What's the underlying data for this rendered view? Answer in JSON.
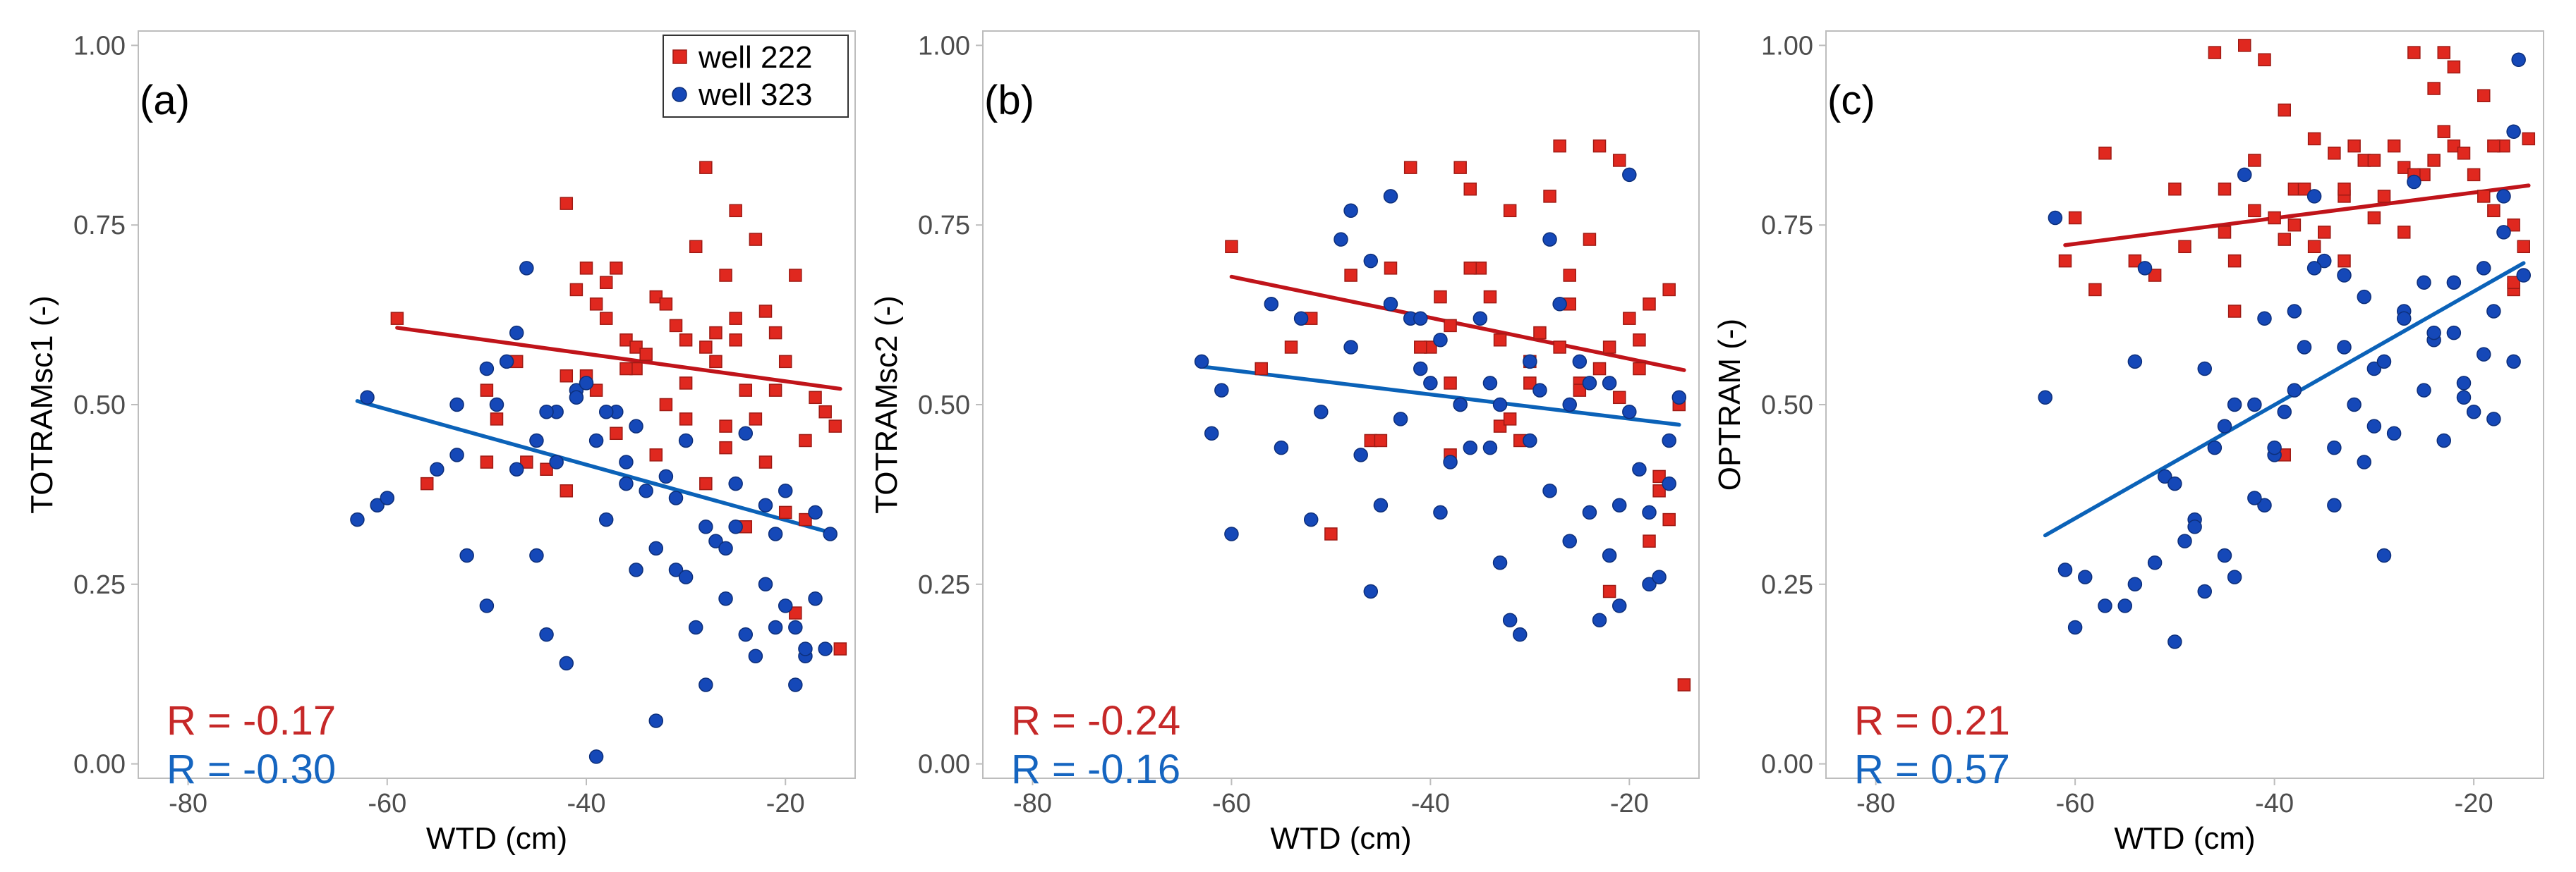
{
  "colors": {
    "well_222": "#e0281f",
    "well_222_edge": "#9e1a14",
    "well_222_line": "#c0141a",
    "well_323": "#1548b8",
    "well_323_edge": "#0d2f7a",
    "well_323_line": "#0b62b8",
    "r_222": "#c62828",
    "r_323": "#1565c0",
    "axis": "#bdbdbd",
    "tick_text": "#4d4d4d"
  },
  "legend": {
    "well_222": "well 222",
    "well_323": "well 323"
  },
  "chart_data": [
    {
      "type": "scatter",
      "panel": "(a)",
      "xlabel": "WTD (cm)",
      "ylabel": "TOTRAMsc1 (-)",
      "xlim": [
        -85,
        -13
      ],
      "ylim": [
        -0.02,
        1.02
      ],
      "xticks": [
        -80,
        -60,
        -40,
        -20
      ],
      "xtick_labels": [
        "-80",
        "-60",
        "-40",
        "-20"
      ],
      "yticks": [
        0,
        0.25,
        0.5,
        0.75,
        1
      ],
      "ytick_labels": [
        "0.00",
        "0.25",
        "0.50",
        "0.75",
        "1.00"
      ],
      "r_222": "R = -0.17",
      "r_323": "R = -0.30",
      "fit_222": {
        "x": [
          -59,
          -14.5
        ],
        "y": [
          0.607,
          0.522
        ]
      },
      "fit_323": {
        "x": [
          -63,
          -15.5
        ],
        "y": [
          0.505,
          0.322
        ]
      },
      "series": [
        {
          "name": "well 222",
          "marker": "square",
          "x": [
            -59,
            -56,
            -50,
            -49,
            -47,
            -44,
            -42,
            -41,
            -40,
            -39,
            -38,
            -37,
            -36,
            -35,
            -35,
            -33,
            -32,
            -31,
            -30,
            -30,
            -29,
            -28,
            -28,
            -27,
            -26,
            -26,
            -25,
            -25,
            -24,
            -23,
            -22,
            -21,
            -21,
            -20,
            -19,
            -18,
            -17,
            -16,
            -15,
            -14.5,
            -40,
            -38,
            -36,
            -34,
            -32,
            -30,
            -28,
            -26,
            -24,
            -22,
            -20,
            -19,
            -42,
            -39,
            -37,
            -33,
            -27,
            -25,
            -23,
            -18,
            -50,
            -46,
            -42
          ],
          "y": [
            0.62,
            0.39,
            0.52,
            0.48,
            0.56,
            0.41,
            0.78,
            0.66,
            0.69,
            0.64,
            0.67,
            0.69,
            0.59,
            0.55,
            0.58,
            0.65,
            0.64,
            0.61,
            0.59,
            0.53,
            0.72,
            0.58,
            0.83,
            0.6,
            0.68,
            0.47,
            0.59,
            0.77,
            0.52,
            0.73,
            0.63,
            0.6,
            0.52,
            0.56,
            0.68,
            0.45,
            0.51,
            0.49,
            0.47,
            0.16,
            0.54,
            0.62,
            0.55,
            0.57,
            0.5,
            0.48,
            0.39,
            0.44,
            0.33,
            0.42,
            0.35,
            0.21,
            0.38,
            0.52,
            0.46,
            0.43,
            0.56,
            0.62,
            0.48,
            0.34,
            0.42,
            0.42,
            0.54
          ]
        },
        {
          "name": "well 323",
          "marker": "circle",
          "x": [
            -63,
            -62,
            -61,
            -60,
            -55,
            -53,
            -52,
            -50,
            -49,
            -48,
            -47,
            -46,
            -45,
            -44,
            -43,
            -42,
            -41,
            -40,
            -39,
            -39,
            -38,
            -37,
            -36,
            -35,
            -34,
            -33,
            -33,
            -32,
            -31,
            -30,
            -29,
            -28,
            -27,
            -26,
            -25,
            -24,
            -23,
            -22,
            -21,
            -20,
            -19,
            -18,
            -17,
            -16,
            -15.5,
            -50,
            -47,
            -43,
            -41,
            -38,
            -35,
            -31,
            -28,
            -25,
            -22,
            -20,
            -17,
            -53,
            -45,
            -44,
            -36,
            -30,
            -26,
            -24,
            -21,
            -19,
            -18
          ],
          "y": [
            0.34,
            0.51,
            0.36,
            0.37,
            0.41,
            0.43,
            0.29,
            0.22,
            0.5,
            0.56,
            0.41,
            0.69,
            0.45,
            0.18,
            0.42,
            0.14,
            0.52,
            0.53,
            0.01,
            0.45,
            0.34,
            0.49,
            0.42,
            0.27,
            0.38,
            0.06,
            0.3,
            0.4,
            0.27,
            0.45,
            0.19,
            0.11,
            0.31,
            0.23,
            0.39,
            0.18,
            0.15,
            0.25,
            0.19,
            0.22,
            0.11,
            0.15,
            0.23,
            0.16,
            0.32,
            0.55,
            0.6,
            0.49,
            0.51,
            0.49,
            0.47,
            0.37,
            0.33,
            0.33,
            0.36,
            0.38,
            0.35,
            0.5,
            0.29,
            0.49,
            0.39,
            0.26,
            0.3,
            0.46,
            0.32,
            0.19,
            0.16
          ]
        }
      ]
    },
    {
      "type": "scatter",
      "panel": "(b)",
      "xlabel": "WTD (cm)",
      "ylabel": "TOTRAMsc2 (-)",
      "xlim": [
        -85,
        -13
      ],
      "ylim": [
        -0.02,
        1.02
      ],
      "xticks": [
        -80,
        -60,
        -40,
        -20
      ],
      "xtick_labels": [
        "-80",
        "-60",
        "-40",
        "-20"
      ],
      "yticks": [
        0,
        0.25,
        0.5,
        0.75,
        1
      ],
      "ytick_labels": [
        "0.00",
        "0.25",
        "0.50",
        "0.75",
        "1.00"
      ],
      "r_222": "R = -0.24",
      "r_323": "R = -0.16",
      "fit_222": {
        "x": [
          -60,
          -14.5
        ],
        "y": [
          0.678,
          0.548
        ]
      },
      "fit_323": {
        "x": [
          -63,
          -15
        ],
        "y": [
          0.553,
          0.472
        ]
      },
      "series": [
        {
          "name": "well 222",
          "marker": "square",
          "x": [
            -60,
            -57,
            -54,
            -52,
            -50,
            -48,
            -46,
            -44,
            -42,
            -40,
            -39,
            -38,
            -37,
            -36,
            -35,
            -34,
            -33,
            -32,
            -31,
            -30,
            -29,
            -28,
            -27,
            -26,
            -25,
            -24,
            -23,
            -22,
            -21,
            -20,
            -19,
            -18,
            -17,
            -16,
            -15,
            -14.5,
            -41,
            -38,
            -36,
            -33,
            -30,
            -27,
            -25,
            -23,
            -21,
            -19,
            -17,
            -16,
            -45,
            -38,
            -32,
            -26,
            -22,
            -18
          ],
          "y": [
            0.72,
            0.55,
            0.58,
            0.62,
            0.32,
            0.68,
            0.45,
            0.69,
            0.83,
            0.58,
            0.65,
            0.43,
            0.83,
            0.8,
            0.69,
            0.65,
            0.47,
            0.77,
            0.45,
            0.53,
            0.6,
            0.79,
            0.86,
            0.68,
            0.53,
            0.73,
            0.86,
            0.58,
            0.84,
            0.62,
            0.59,
            0.64,
            0.4,
            0.66,
            0.5,
            0.11,
            0.58,
            0.53,
            0.69,
            0.59,
            0.56,
            0.58,
            0.52,
            0.55,
            0.51,
            0.55,
            0.38,
            0.34,
            0.45,
            0.61,
            0.48,
            0.64,
            0.24,
            0.31
          ]
        },
        {
          "name": "well 323",
          "marker": "circle",
          "x": [
            -63,
            -62,
            -61,
            -60,
            -56,
            -55,
            -53,
            -51,
            -49,
            -48,
            -47,
            -46,
            -45,
            -44,
            -43,
            -42,
            -41,
            -40,
            -39,
            -38,
            -37,
            -36,
            -35,
            -34,
            -33,
            -32,
            -31,
            -30,
            -29,
            -28,
            -27,
            -26,
            -25,
            -24,
            -23,
            -22,
            -21,
            -20,
            -19,
            -18,
            -17,
            -16,
            -15,
            -48,
            -44,
            -41,
            -37,
            -34,
            -30,
            -26,
            -22,
            -20,
            -16,
            -52,
            -46,
            -39,
            -33,
            -28,
            -24,
            -21,
            -18
          ],
          "y": [
            0.56,
            0.46,
            0.52,
            0.32,
            0.64,
            0.44,
            0.62,
            0.49,
            0.73,
            0.77,
            0.43,
            0.24,
            0.36,
            0.79,
            0.48,
            0.62,
            0.55,
            0.53,
            0.35,
            0.42,
            0.5,
            0.44,
            0.62,
            0.53,
            0.5,
            0.2,
            0.18,
            0.45,
            0.52,
            0.38,
            0.64,
            0.31,
            0.56,
            0.35,
            0.2,
            0.29,
            0.36,
            0.82,
            0.41,
            0.25,
            0.26,
            0.45,
            0.51,
            0.58,
            0.64,
            0.62,
            0.5,
            0.44,
            0.56,
            0.5,
            0.53,
            0.49,
            0.39,
            0.34,
            0.7,
            0.59,
            0.28,
            0.73,
            0.53,
            0.22,
            0.35
          ]
        }
      ]
    },
    {
      "type": "scatter",
      "panel": "(c)",
      "xlabel": "WTD (cm)",
      "ylabel": "OPTRAM (-)",
      "xlim": [
        -85,
        -13
      ],
      "ylim": [
        -0.02,
        1.02
      ],
      "xticks": [
        -80,
        -60,
        -40,
        -20
      ],
      "xtick_labels": [
        "-80",
        "-60",
        "-40",
        "-20"
      ],
      "yticks": [
        0,
        0.25,
        0.5,
        0.75,
        1
      ],
      "ytick_labels": [
        "0.00",
        "0.25",
        "0.50",
        "0.75",
        "1.00"
      ],
      "r_222": "R = 0.21",
      "r_323": "R = 0.57",
      "fit_222": {
        "x": [
          -61,
          -14.5
        ],
        "y": [
          0.722,
          0.805
        ]
      },
      "fit_323": {
        "x": [
          -63,
          -15
        ],
        "y": [
          0.318,
          0.697
        ]
      },
      "series": [
        {
          "name": "well 222",
          "marker": "square",
          "x": [
            -61,
            -60,
            -58,
            -57,
            -54,
            -52,
            -50,
            -49,
            -46,
            -45,
            -44,
            -43,
            -42,
            -41,
            -40,
            -39,
            -38,
            -37,
            -36,
            -35,
            -34,
            -33,
            -32,
            -31,
            -30,
            -29,
            -28,
            -27,
            -26,
            -25,
            -24,
            -23,
            -22,
            -21,
            -20,
            -19,
            -18,
            -17,
            -16,
            -15,
            -14.5,
            -45,
            -42,
            -39,
            -36,
            -33,
            -30,
            -27,
            -24,
            -22,
            -19,
            -16,
            -44,
            -38,
            -33,
            -26,
            -23,
            -18,
            -16,
            -39
          ],
          "y": [
            0.7,
            0.76,
            0.66,
            0.85,
            0.7,
            0.68,
            0.8,
            0.72,
            0.99,
            0.74,
            0.7,
            1.0,
            0.84,
            0.98,
            0.76,
            0.91,
            0.8,
            0.8,
            0.87,
            0.74,
            0.85,
            0.79,
            0.86,
            0.84,
            0.84,
            0.79,
            0.86,
            0.83,
            0.99,
            0.82,
            0.84,
            0.99,
            0.86,
            0.85,
            0.82,
            0.93,
            0.77,
            0.86,
            0.75,
            0.72,
            0.87,
            0.8,
            0.77,
            0.73,
            0.72,
            0.7,
            0.76,
            0.74,
            0.94,
            0.97,
            0.79,
            0.66,
            0.63,
            0.75,
            0.8,
            0.82,
            0.88,
            0.86,
            0.67,
            0.43
          ]
        },
        {
          "name": "well 323",
          "marker": "circle",
          "x": [
            -63,
            -62,
            -61,
            -60,
            -59,
            -57,
            -55,
            -54,
            -53,
            -52,
            -51,
            -50,
            -49,
            -48,
            -47,
            -46,
            -45,
            -44,
            -43,
            -42,
            -41,
            -40,
            -39,
            -38,
            -37,
            -36,
            -35,
            -34,
            -33,
            -32,
            -31,
            -30,
            -29,
            -28,
            -27,
            -26,
            -25,
            -24,
            -23,
            -22,
            -21,
            -20,
            -19,
            -18,
            -17,
            -16,
            -15.5,
            -15,
            -50,
            -47,
            -44,
            -40,
            -36,
            -33,
            -30,
            -27,
            -24,
            -21,
            -18,
            -16,
            -45,
            -41,
            -38,
            -34,
            -29,
            -25,
            -22,
            -19,
            -17,
            -54,
            -48,
            -42,
            -31
          ],
          "y": [
            0.51,
            0.76,
            0.27,
            0.19,
            0.26,
            0.22,
            0.22,
            0.25,
            0.69,
            0.28,
            0.4,
            0.17,
            0.31,
            0.34,
            0.24,
            0.44,
            0.29,
            0.26,
            0.82,
            0.5,
            0.36,
            0.43,
            0.49,
            0.63,
            0.58,
            0.79,
            0.7,
            0.36,
            0.68,
            0.5,
            0.65,
            0.55,
            0.29,
            0.46,
            0.63,
            0.81,
            0.67,
            0.59,
            0.45,
            0.67,
            0.53,
            0.49,
            0.57,
            0.48,
            0.79,
            0.56,
            0.98,
            0.68,
            0.39,
            0.55,
            0.5,
            0.44,
            0.69,
            0.58,
            0.47,
            0.62,
            0.6,
            0.51,
            0.63,
            0.88,
            0.47,
            0.62,
            0.52,
            0.44,
            0.56,
            0.52,
            0.6,
            0.69,
            0.74,
            0.56,
            0.33,
            0.37,
            0.42
          ]
        }
      ]
    }
  ]
}
